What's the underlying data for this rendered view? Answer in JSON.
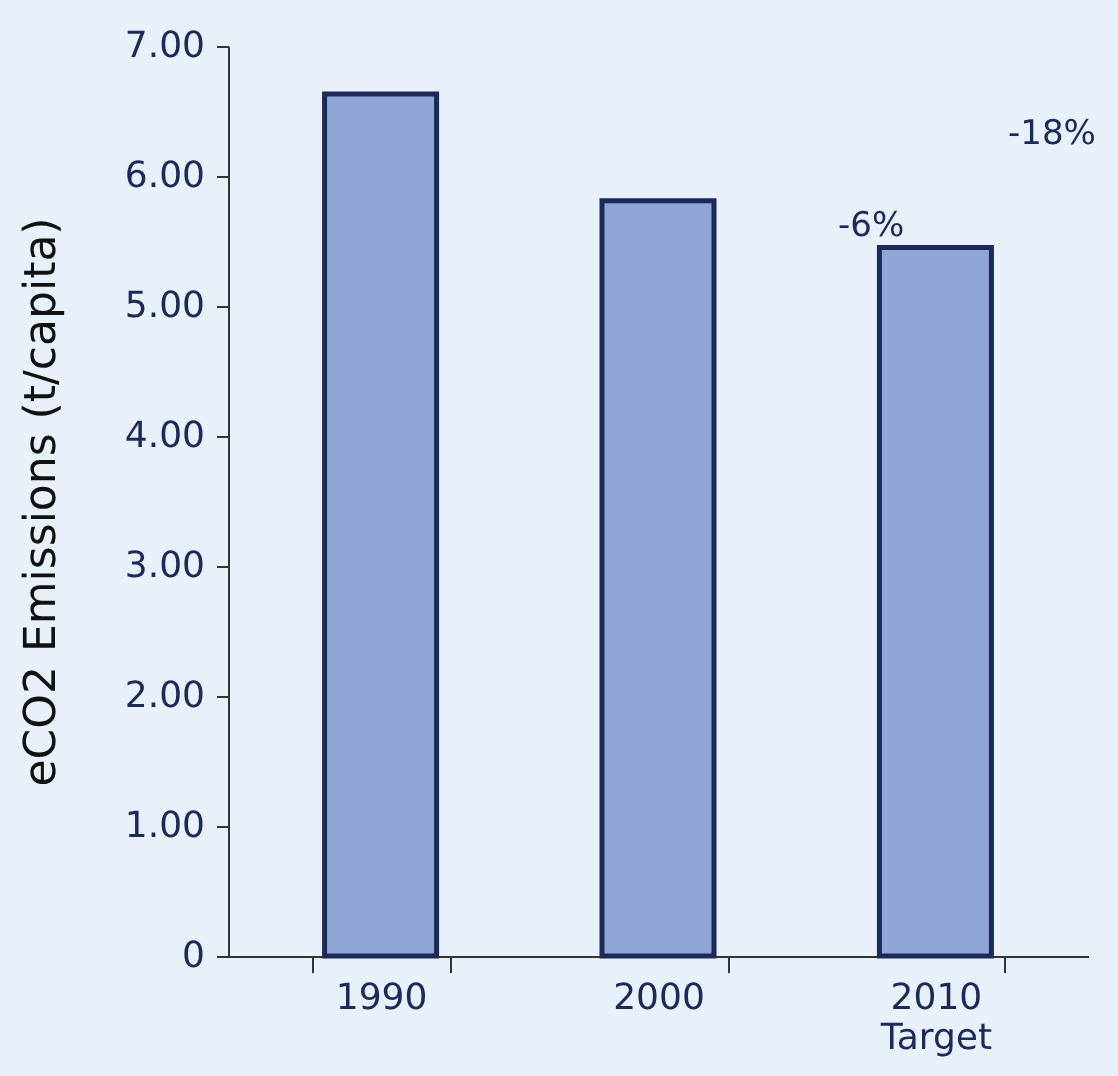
{
  "chart_data": {
    "type": "bar",
    "ylabel": "eCO2 Emissions (t/capita)",
    "categories": [
      "1990",
      "2000",
      "2010\nTarget"
    ],
    "values": [
      6.63,
      5.81,
      5.45
    ],
    "color": "#8fa6d6",
    "ylim": [
      0,
      7
    ],
    "yticks": [
      {
        "value": 0,
        "label": "0"
      },
      {
        "value": 1,
        "label": "1.00"
      },
      {
        "value": 2,
        "label": "2.00"
      },
      {
        "value": 3,
        "label": "3.00"
      },
      {
        "value": 4,
        "label": "4.00"
      },
      {
        "value": 5,
        "label": "5.00"
      },
      {
        "value": 6,
        "label": "6.00"
      },
      {
        "value": 7,
        "label": "7.00"
      }
    ],
    "annotations": [
      "-18%",
      "-6%"
    ],
    "grid": false
  }
}
